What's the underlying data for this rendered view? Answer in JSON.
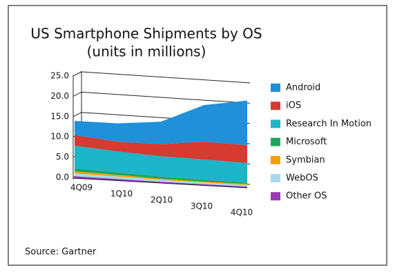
{
  "chart_data": {
    "type": "stacked-area",
    "title": "US Smartphone Shipments by OS",
    "subtitle": "(units in millions)",
    "source": "Source: Gartner",
    "categories": [
      "4Q09",
      "1Q10",
      "2Q10",
      "3Q10",
      "4Q10"
    ],
    "series": [
      {
        "name": "Android",
        "color": "#2090da",
        "values": [
          3.5,
          4.5,
          5.5,
          9.0,
          11.0
        ]
      },
      {
        "name": "iOS",
        "color": "#d63a31",
        "values": [
          2.6,
          2.4,
          3.0,
          4.4,
          4.4
        ]
      },
      {
        "name": "Research In Motion",
        "color": "#1db5c8",
        "values": [
          5.6,
          5.2,
          5.0,
          5.0,
          4.8
        ]
      },
      {
        "name": "Microsoft",
        "color": "#1aa65e",
        "values": [
          0.7,
          0.6,
          0.5,
          0.4,
          0.3
        ]
      },
      {
        "name": "Symbian",
        "color": "#f2a000",
        "values": [
          0.5,
          0.4,
          0.3,
          0.3,
          0.3
        ]
      },
      {
        "name": "WebOS",
        "color": "#a8d9ef",
        "values": [
          0.7,
          0.6,
          0.5,
          0.4,
          0.4
        ]
      },
      {
        "name": "Other OS",
        "color": "#9b39b5",
        "values": [
          0.5,
          0.4,
          0.3,
          0.3,
          0.3
        ]
      }
    ],
    "ylim": [
      0,
      25
    ],
    "yticks": [
      {
        "value": 0,
        "label": "0.0"
      },
      {
        "value": 5,
        "label": "5.0"
      },
      {
        "value": 10,
        "label": "10.0"
      },
      {
        "value": 15,
        "label": "15.0"
      },
      {
        "value": 20,
        "label": "20.0"
      },
      {
        "value": 25,
        "label": "25.0"
      }
    ],
    "grid": true
  }
}
